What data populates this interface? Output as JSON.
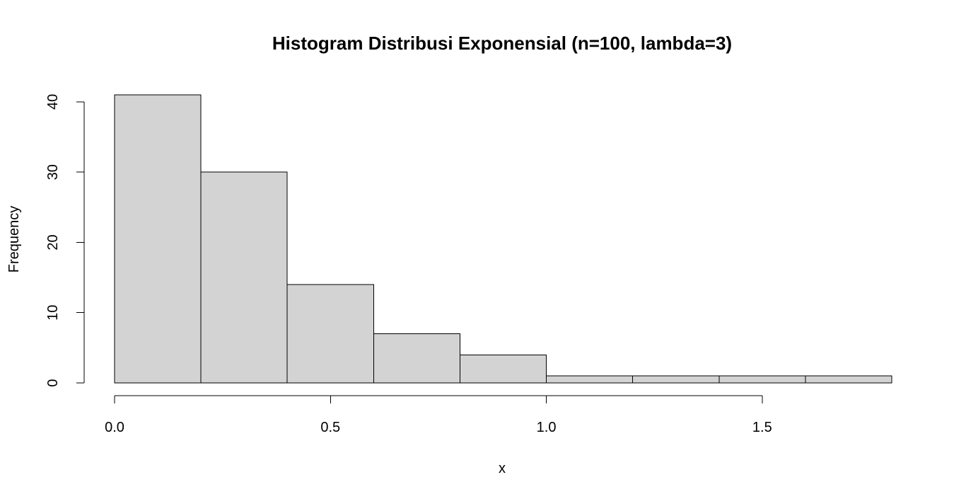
{
  "chart_data": {
    "type": "bar",
    "title": "Histogram Distribusi Exponensial (n=100, lambda=3)",
    "xlabel": "x",
    "ylabel": "Frequency",
    "bins": [
      {
        "start": 0.0,
        "end": 0.2,
        "count": 41
      },
      {
        "start": 0.2,
        "end": 0.4,
        "count": 30
      },
      {
        "start": 0.4,
        "end": 0.6,
        "count": 14
      },
      {
        "start": 0.6,
        "end": 0.8,
        "count": 7
      },
      {
        "start": 0.8,
        "end": 1.0,
        "count": 4
      },
      {
        "start": 1.0,
        "end": 1.2,
        "count": 1
      },
      {
        "start": 1.2,
        "end": 1.4,
        "count": 1
      },
      {
        "start": 1.4,
        "end": 1.6,
        "count": 1
      },
      {
        "start": 1.6,
        "end": 1.8,
        "count": 1
      }
    ],
    "xticks": [
      "0.0",
      "0.5",
      "1.0",
      "1.5"
    ],
    "xtick_values": [
      0.0,
      0.5,
      1.0,
      1.5
    ],
    "yticks": [
      "0",
      "10",
      "20",
      "30",
      "40"
    ],
    "ytick_values": [
      0,
      10,
      20,
      30,
      40
    ],
    "xlim": [
      0.0,
      1.8
    ],
    "ylim": [
      0,
      41
    ],
    "bar_fill": "#d3d3d3",
    "bar_stroke": "#000000",
    "grid": false,
    "legend": "none"
  }
}
